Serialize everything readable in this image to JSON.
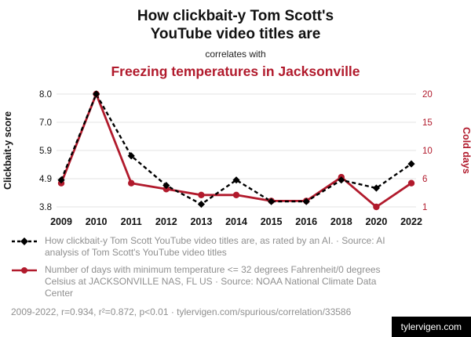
{
  "title": {
    "main": "How clickbait-y Tom Scott's YouTube video titles are",
    "connector": "correlates with",
    "correlate": "Freezing temperatures in Jacksonville"
  },
  "colors": {
    "accent": "#b11a2c",
    "series1": "#000000",
    "series2": "#b11a2c",
    "legend_text": "#8f8f8f",
    "grid": "#e3e3e3"
  },
  "chart_data": {
    "type": "line",
    "categories": [
      "2009",
      "2010",
      "2011",
      "2012",
      "2013",
      "2014",
      "2015",
      "2016",
      "2018",
      "2020",
      "2022"
    ],
    "series": [
      {
        "name": "Clickbait-y score",
        "axis": "left",
        "color": "#000000",
        "style": "dashed",
        "marker": "diamond",
        "values": [
          4.8,
          8.0,
          5.7,
          4.6,
          3.9,
          4.8,
          4.0,
          4.0,
          4.8,
          4.5,
          5.4
        ]
      },
      {
        "name": "Cold days",
        "axis": "right",
        "color": "#b11a2c",
        "style": "solid",
        "marker": "circle",
        "values": [
          5,
          20,
          5,
          4,
          3,
          3,
          2,
          2,
          6,
          1,
          5
        ]
      }
    ],
    "left_axis": {
      "label": "Clickbait-y score",
      "min": 3.8,
      "max": 8.0,
      "tick_labels": [
        "3.8",
        "4.9",
        "5.9",
        "7.0",
        "8.0"
      ]
    },
    "right_axis": {
      "label": "Cold days",
      "min": 1,
      "max": 20,
      "tick_labels": [
        "1",
        "6",
        "10",
        "15",
        "20"
      ]
    },
    "grid": true,
    "legend_position": "bottom"
  },
  "legend": [
    {
      "series": "clickbait-score",
      "text": "How clickbait-y Tom Scott YouTube video titles are, as rated by an AI. · Source: AI analysis of Tom Scott's YouTube video titles"
    },
    {
      "series": "cold-days",
      "text": "Number of days with minimum temperature <= 32 degrees Fahrenheit/0 degrees Celsius at JACKSONVILLE NAS, FL US · Source: NOAA National Climate Data Center"
    }
  ],
  "footer": {
    "stats": "2009-2022, r=0.934, r²=0.872, p<0.01 · tylervigen.com/spurious/correlation/33586",
    "badge": "tylervigen.com"
  }
}
